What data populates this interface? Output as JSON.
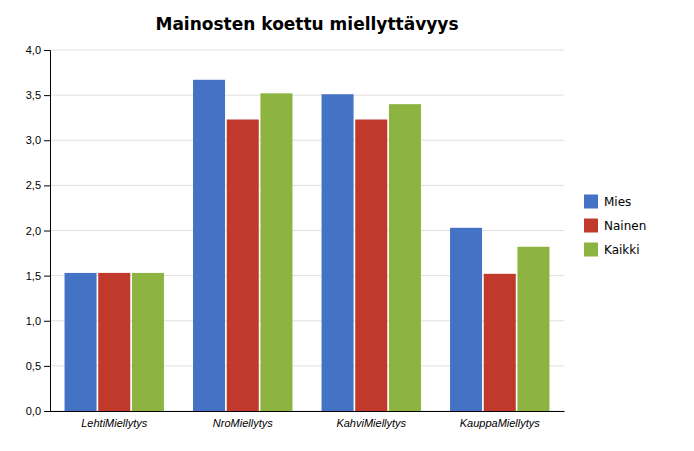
{
  "chart_data": {
    "type": "bar",
    "title": "Mainosten koettu miellyttävyys",
    "categories": [
      "LehtiMiellytys",
      "NroMiellytys",
      "KahviMiellytys",
      "KauppaMiellytys"
    ],
    "series": [
      {
        "name": "Mies",
        "color": "#4472C4",
        "values": [
          1.53,
          3.67,
          3.51,
          2.03
        ]
      },
      {
        "name": "Nainen",
        "color": "#C0392B",
        "values": [
          1.53,
          3.23,
          3.23,
          1.52
        ]
      },
      {
        "name": "Kaikki",
        "color": "#8DB441",
        "values": [
          1.53,
          3.52,
          3.4,
          1.82
        ]
      }
    ],
    "ylim": [
      0,
      4.0
    ],
    "yticks": [
      {
        "value": 0.0,
        "label": "0,0"
      },
      {
        "value": 0.5,
        "label": "0,5"
      },
      {
        "value": 1.0,
        "label": "1,0"
      },
      {
        "value": 1.5,
        "label": "1,5"
      },
      {
        "value": 2.0,
        "label": "2,0"
      },
      {
        "value": 2.5,
        "label": "2,5"
      },
      {
        "value": 3.0,
        "label": "3,0"
      },
      {
        "value": 3.5,
        "label": "3,5"
      },
      {
        "value": 4.0,
        "label": "4,0"
      }
    ],
    "grid": true,
    "legend": "right"
  }
}
